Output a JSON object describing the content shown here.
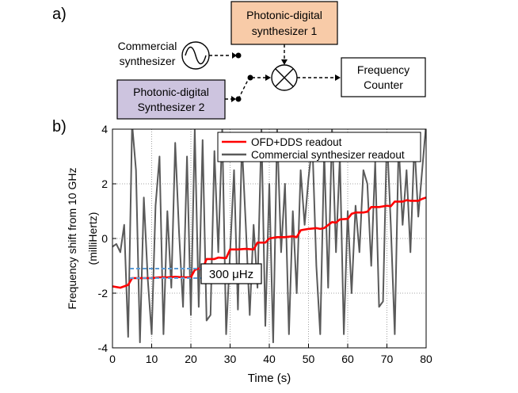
{
  "panel_a": {
    "label": "a)",
    "blocks": {
      "photonic1": {
        "line1": "Photonic-digital",
        "line2": "synthesizer 1",
        "fill": "#f8cba8"
      },
      "photonic2": {
        "line1": "Photonic-digital",
        "line2": "Synthesizer 2",
        "fill": "#cdc4df"
      },
      "commercial": {
        "line1": "Commercial",
        "line2": "synthesizer"
      },
      "counter": {
        "line1": "Frequency",
        "line2": "Counter"
      }
    }
  },
  "panel_b": {
    "label": "b)",
    "annotation": "300 μHz",
    "annotation_color": "#5b9bd5"
  },
  "chart_data": {
    "type": "line",
    "xlabel": "Time (s)",
    "ylabel_line1": "Frequency shift from 10 GHz",
    "ylabel_line2": "(milliHertz)",
    "xlim": [
      0,
      80
    ],
    "ylim": [
      -4,
      4
    ],
    "xticks": [
      0,
      10,
      20,
      30,
      40,
      50,
      60,
      70,
      80
    ],
    "yticks": [
      -4,
      -2,
      0,
      2,
      4
    ],
    "grid": true,
    "legend_position": "top-right",
    "series": [
      {
        "name": "OFD+DDS readout",
        "color": "#ff0000",
        "x": [
          0,
          2,
          3,
          4,
          5,
          7,
          9,
          10,
          12,
          14,
          16,
          18,
          20,
          21,
          22,
          23,
          24,
          26,
          27,
          29,
          30,
          32,
          34,
          36,
          37,
          39,
          40,
          42,
          44,
          46,
          47,
          48,
          50,
          52,
          53,
          54,
          56,
          57,
          58,
          60,
          61,
          62,
          64,
          65,
          66,
          68,
          70,
          71,
          72,
          74,
          75,
          76,
          78,
          79,
          80
        ],
        "y": [
          -1.75,
          -1.8,
          -1.75,
          -1.7,
          -1.45,
          -1.45,
          -1.45,
          -1.45,
          -1.42,
          -1.42,
          -1.4,
          -1.42,
          -1.42,
          -1.15,
          -1.1,
          -1.12,
          -0.75,
          -0.75,
          -0.7,
          -0.72,
          -0.4,
          -0.4,
          -0.38,
          -0.4,
          -0.15,
          -0.15,
          0,
          0.05,
          0.05,
          0.08,
          0.05,
          0.3,
          0.35,
          0.38,
          0.35,
          0.38,
          0.6,
          0.58,
          0.7,
          0.72,
          0.9,
          0.95,
          0.95,
          0.98,
          1.15,
          1.15,
          1.2,
          1.18,
          1.35,
          1.35,
          1.4,
          1.38,
          1.38,
          1.45,
          1.5
        ]
      },
      {
        "name": "Commercial synthesizer readout",
        "color": "#5a5a5a",
        "x": [
          0,
          1,
          2,
          3,
          4,
          5,
          6,
          7,
          8,
          9,
          10,
          11,
          12,
          13,
          14,
          15,
          16,
          17,
          18,
          19,
          20,
          21,
          22,
          23,
          24,
          25,
          26,
          27,
          28,
          29,
          30,
          31,
          32,
          33,
          34,
          35,
          36,
          37,
          38,
          39,
          40,
          41,
          42,
          43,
          44,
          45,
          46,
          47,
          48,
          49,
          50,
          51,
          52,
          53,
          54,
          55,
          56,
          57,
          58,
          59,
          60,
          61,
          62,
          63,
          64,
          65,
          66,
          67,
          68,
          69,
          70,
          71,
          72,
          73,
          74,
          75,
          76,
          77,
          78,
          79,
          80
        ],
        "y": [
          -0.3,
          -0.2,
          -0.5,
          0.5,
          -3.6,
          4.2,
          2.5,
          -3.8,
          1.5,
          -1.5,
          -3.5,
          1.2,
          3.0,
          -3.5,
          1.0,
          -1.8,
          3.5,
          0.2,
          -2.5,
          3.0,
          -2.8,
          4.0,
          -2.5,
          3.6,
          -3.0,
          -2.8,
          3.2,
          -0.5,
          4.0,
          -3.5,
          -0.5,
          2.5,
          -2.6,
          3.5,
          0.5,
          -2.8,
          0.5,
          -1.8,
          4.0,
          -3.2,
          2.0,
          -3.8,
          4.0,
          -0.5,
          2.0,
          -3.5,
          1.0,
          -2.0,
          2.5,
          0.5,
          2.2,
          3.5,
          -1.0,
          -3.5,
          3.2,
          -1.8,
          4.0,
          -0.5,
          3.0,
          -3.5,
          1.0,
          -2.0,
          1.2,
          -0.5,
          2.5,
          2.0,
          -1.0,
          2.8,
          -2.5,
          -2.3,
          3.8,
          0.5,
          -3.5,
          3.5,
          0.5,
          2.5,
          -0.5,
          3.5,
          0.8,
          2.5,
          4.2
        ]
      }
    ]
  }
}
